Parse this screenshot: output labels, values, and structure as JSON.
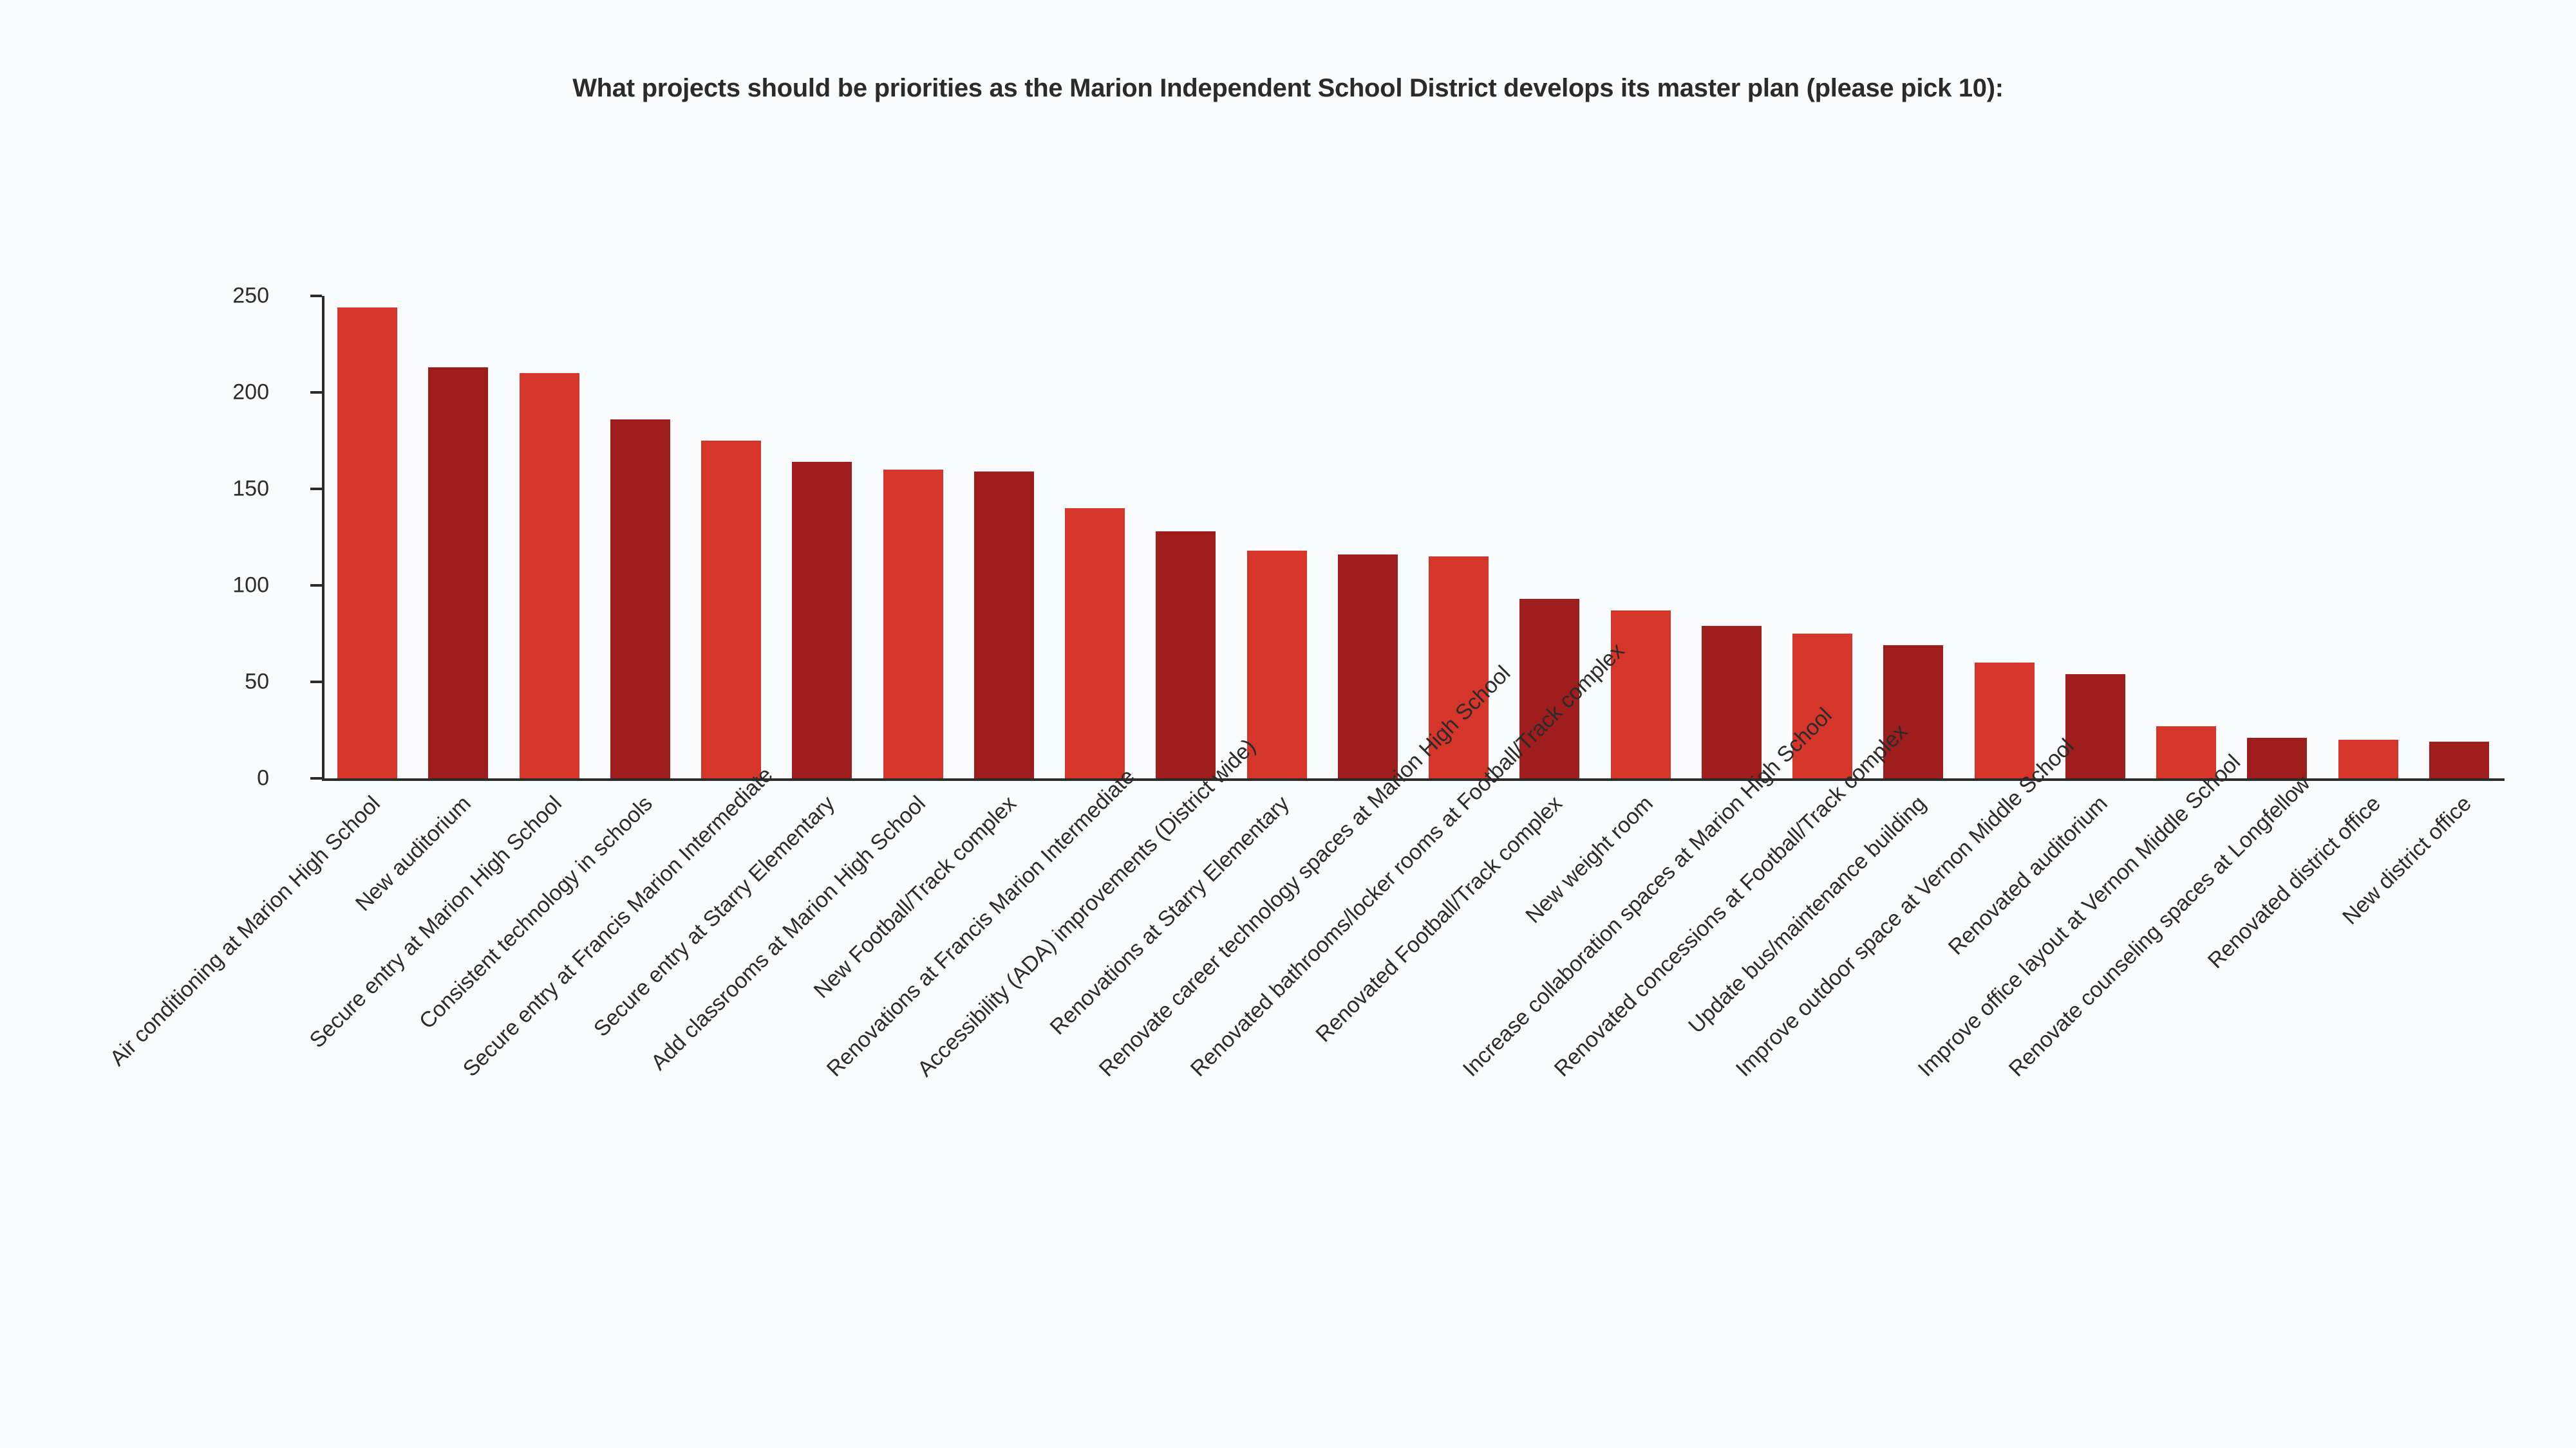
{
  "chart": {
    "type": "bar",
    "title": "What projects should be priorities as the Marion Independent School District develops its master plan (please pick 10):",
    "title_fontsize": 40,
    "title_color": "#2b2b2b",
    "background_color": "#fafbfc",
    "axis_color": "#2b2b2b",
    "ylim": [
      0,
      250
    ],
    "ytick_step": 50,
    "yticks": [
      0,
      50,
      100,
      150,
      200,
      250
    ],
    "label_fontsize": 34,
    "bar_width_ratio": 0.66,
    "color_bright": "#d6352a",
    "color_dark": "#a01d1d",
    "categories": [
      "Air conditioning at Marion High School",
      "New auditorium",
      "Secure entry at Marion High School",
      "Consistent technology in schools",
      "Secure entry at Francis Marion Intermediate",
      "Secure entry at Starry Elementary",
      "Add classrooms at Marion High School",
      "New Football/Track complex",
      "Renovations at Francis Marion Intermediate",
      "Accessibility (ADA) improvements (District wide)",
      "Renovations at Starry Elementary",
      "Renovate career technology spaces at Marion High School",
      "Renovated bathrooms/locker rooms at Football/Track complex",
      "Renovated Football/Track complex",
      "New weight room",
      "Increase collaboration spaces at Marion High School",
      "Renovated concessions at Football/Track complex",
      "Update bus/maintenance building",
      "Improve outdoor space at Vernon Middle School",
      "Renovated auditorium",
      "Improve office layout at Vernon Middle School",
      "Renovate counseling spaces at Longfellow",
      "Renovated district office",
      "New district office"
    ],
    "values": [
      244,
      213,
      210,
      186,
      175,
      164,
      160,
      159,
      140,
      128,
      118,
      116,
      115,
      93,
      87,
      79,
      75,
      69,
      60,
      54,
      27,
      21,
      20,
      19
    ],
    "bar_color_keys": [
      "bright",
      "dark",
      "bright",
      "dark",
      "bright",
      "dark",
      "bright",
      "dark",
      "bright",
      "dark",
      "bright",
      "dark",
      "bright",
      "dark",
      "bright",
      "dark",
      "bright",
      "dark",
      "bright",
      "dark",
      "bright",
      "dark",
      "bright",
      "dark"
    ]
  }
}
